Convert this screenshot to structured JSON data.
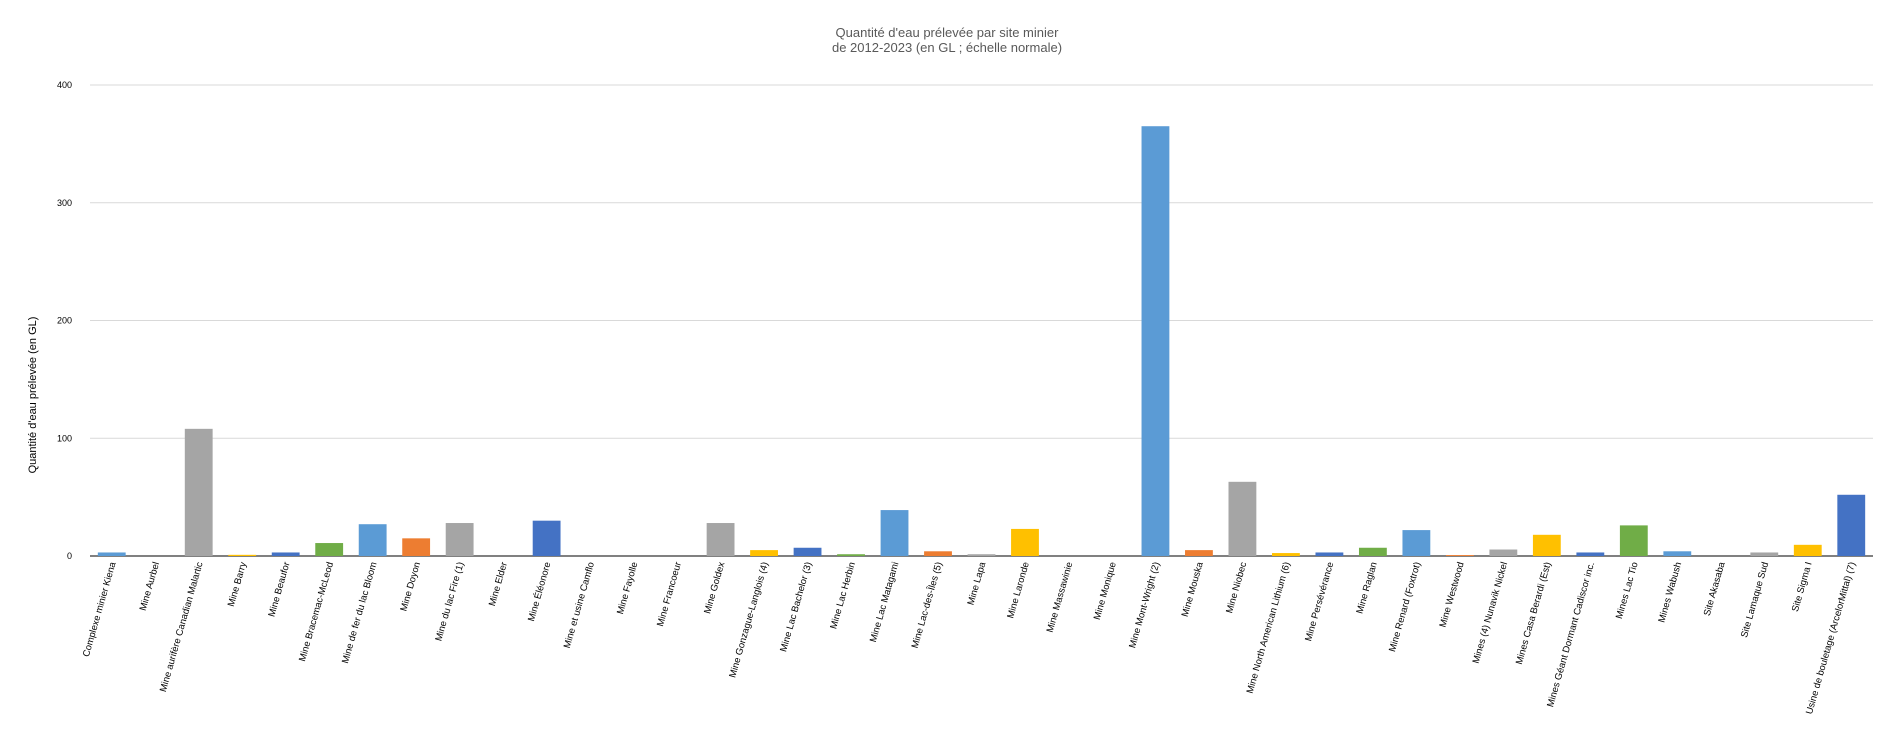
{
  "chart_data": {
    "type": "bar",
    "title": "Quantité d'eau prélevée par site minier",
    "subtitle": "de 2012-2023 (en GL ; échelle normale)",
    "xlabel": "",
    "ylabel": "Quantité d'eau prélevée (en GL)",
    "ylim": [
      0,
      400
    ],
    "yticks": [
      0,
      100,
      200,
      300,
      400
    ],
    "grid": true,
    "legend": "none",
    "palette": [
      "#5b9bd5",
      "#ed7d31",
      "#a5a5a5",
      "#ffc000",
      "#4472c4",
      "#70ad47"
    ],
    "categories": [
      "Complexe minier Kiena",
      "Mine Aurbel",
      "Mine aurifère Canadian Malartic",
      "Mine Barry",
      "Mine Beaufor",
      "Mine Bracemac-McLeod",
      "Mine de fer du lac Bloom",
      "Mine Doyon",
      "Mine du lac Fire (1)",
      "Mine Elder",
      "Mine Éléonore",
      "Mine et usine Camflo",
      "Mine Fayolle",
      "Mine Francoeur",
      "Mine Goldex",
      "Mine Gonzague-Langlois (4)",
      "Mine Lac Bachelor (3)",
      "Mine Lac Herbin",
      "Mine Lac Matagami",
      "Mine Lac-des-Îles (5)",
      "Mine Lapa",
      "Mine Laronde",
      "Mine Massawinie",
      "Mine Monique",
      "Mine Mont-Wright (2)",
      "Mine Mouska",
      "Mine Niobec",
      "Mine North American Lithium (6)",
      "Mine Persévérance",
      "Mine Raglan",
      "Mine Renard (Foxtrot)",
      "Mine Westwood",
      "Mines (4) Nunavik Nickel",
      "Mines Casa Berardi (Est)",
      "Mines Géant Dormant Cadiscor inc.",
      "Mines Lac Tio",
      "Mines Wabush",
      "Site Akasaba",
      "Site Lamaque Sud",
      "Site Sigma I",
      "Usine de bouletage (ArcelorMittal) (7)"
    ],
    "values": [
      3,
      0,
      108,
      1,
      3,
      11,
      27,
      15,
      28,
      0,
      30,
      0,
      0,
      0,
      28,
      5,
      7,
      1.5,
      39,
      4,
      1.5,
      23,
      0,
      0,
      365,
      5,
      63,
      2.5,
      3,
      7,
      22,
      0.8,
      5.5,
      18,
      3,
      26,
      4,
      0,
      3,
      9.5,
      52
    ]
  }
}
